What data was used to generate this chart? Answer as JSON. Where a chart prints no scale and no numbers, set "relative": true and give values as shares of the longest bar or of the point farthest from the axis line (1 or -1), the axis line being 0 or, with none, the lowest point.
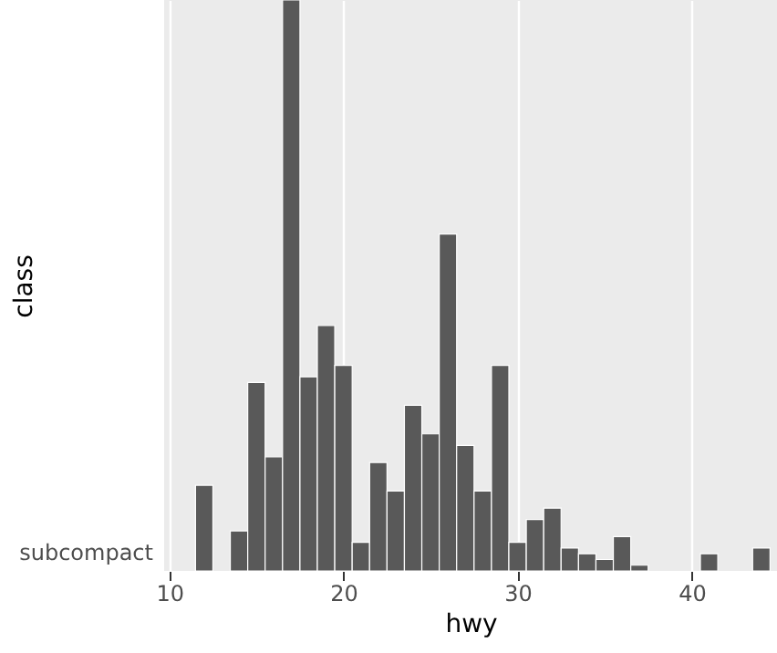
{
  "chart_data": {
    "type": "bar",
    "xlabel": "hwy",
    "ylabel": "class",
    "annotations": [
      "subcompact"
    ],
    "relative": true,
    "x": [
      12,
      13,
      14,
      15,
      16,
      17,
      18,
      19,
      20,
      21,
      22,
      23,
      24,
      25,
      26,
      27,
      28,
      29,
      30,
      31,
      32,
      33,
      34,
      35,
      36,
      37,
      38,
      39,
      40,
      41,
      42,
      43,
      44
    ],
    "values": [
      0.15,
      0,
      0.07,
      0.33,
      0.2,
      1,
      0.34,
      0.43,
      0.36,
      0.05,
      0.19,
      0.14,
      0.29,
      0.24,
      0.59,
      0.22,
      0.14,
      0.36,
      0.05,
      0.09,
      0.11,
      0.04,
      0.03,
      0.02,
      0.06,
      0.01,
      0,
      0,
      0,
      0.03,
      0,
      0,
      0.04
    ],
    "color": "#595959",
    "xlim": [
      9.7,
      44.9
    ],
    "xticks": [
      10,
      20,
      30,
      40
    ],
    "grid": "x"
  }
}
